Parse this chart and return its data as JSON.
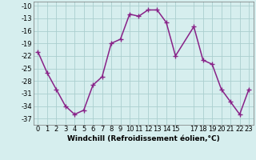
{
  "x": [
    0,
    1,
    2,
    3,
    4,
    5,
    6,
    7,
    8,
    9,
    10,
    11,
    12,
    13,
    14,
    15,
    17,
    18,
    19,
    20,
    21,
    22,
    23
  ],
  "y": [
    -21,
    -26,
    -30,
    -34,
    -36,
    -35,
    -29,
    -27,
    -19,
    -18,
    -12,
    -12.5,
    -11,
    -11,
    -14,
    -22,
    -15,
    -23,
    -24,
    -30,
    -33,
    -36,
    -30
  ],
  "line_color": "#882288",
  "marker_color": "#882288",
  "bg_color": "#d6eeee",
  "grid_color": "#aacece",
  "xlabel": "Windchill (Refroidissement éolien,°C)",
  "yticks": [
    -37,
    -34,
    -31,
    -28,
    -25,
    -22,
    -19,
    -16,
    -13,
    -10
  ],
  "xtick_labels": [
    "0",
    "1",
    "2",
    "3",
    "4",
    "5",
    "6",
    "7",
    "8",
    "9",
    "101112131415",
    "",
    "",
    "",
    "",
    "",
    "171819202122 23",
    "",
    "",
    "",
    "",
    "",
    ""
  ],
  "ylim": [
    -38.5,
    -9.0
  ],
  "xlim": [
    -0.5,
    23.5
  ],
  "xlabel_fontsize": 6.5,
  "tick_fontsize": 6.0,
  "line_width": 1.1,
  "marker_size": 4
}
